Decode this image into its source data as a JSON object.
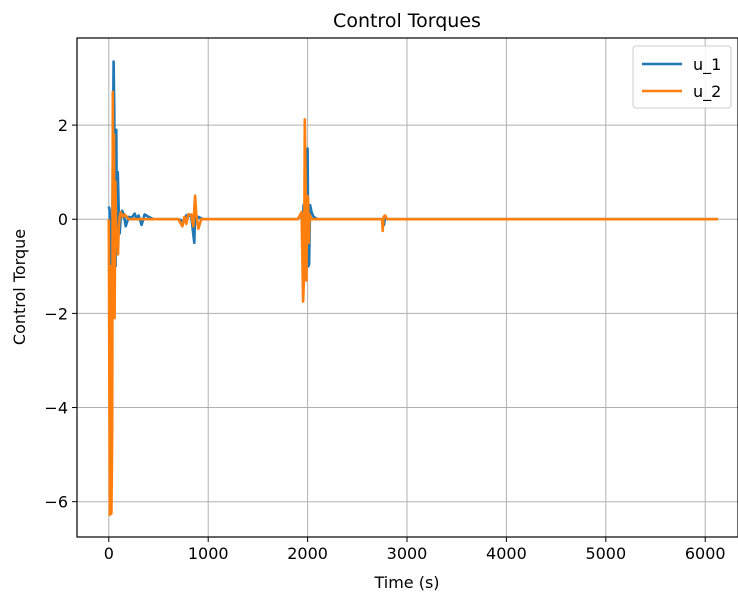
{
  "chart_data": {
    "type": "line",
    "title": "Control Torques",
    "xlabel": "Time (s)",
    "ylabel": "Control Torque",
    "xlim": [
      -320,
      6330
    ],
    "ylim": [
      -6.75,
      3.85
    ],
    "xticks": [
      0,
      1000,
      2000,
      3000,
      4000,
      5000,
      6000
    ],
    "xtick_labels": [
      "0",
      "1000",
      "2000",
      "3000",
      "4000",
      "5000",
      "6000"
    ],
    "yticks": [
      -6,
      -4,
      -2,
      0,
      2
    ],
    "ytick_labels": [
      "−6",
      "−4",
      "−2",
      "0",
      "2"
    ],
    "grid": true,
    "legend_position": "top-right",
    "series": [
      {
        "name": "u_1",
        "color": "#1f77b4",
        "points": [
          [
            0,
            0.27
          ],
          [
            8,
            0.2
          ],
          [
            15,
            -0.5
          ],
          [
            22,
            -6.25
          ],
          [
            30,
            -1.5
          ],
          [
            40,
            1.2
          ],
          [
            48,
            3.35
          ],
          [
            55,
            2.3
          ],
          [
            60,
            0.1
          ],
          [
            68,
            -1.0
          ],
          [
            75,
            1.9
          ],
          [
            82,
            -0.6
          ],
          [
            90,
            1.0
          ],
          [
            100,
            0.2
          ],
          [
            110,
            -0.3
          ],
          [
            120,
            0.05
          ],
          [
            135,
            0.18
          ],
          [
            150,
            0.1
          ],
          [
            170,
            -0.15
          ],
          [
            200,
            0.05
          ],
          [
            230,
            0.03
          ],
          [
            260,
            0.12
          ],
          [
            280,
            0.0
          ],
          [
            300,
            0.08
          ],
          [
            330,
            -0.12
          ],
          [
            360,
            0.1
          ],
          [
            400,
            0.05
          ],
          [
            450,
            0.0
          ],
          [
            700,
            0.0
          ],
          [
            750,
            -0.05
          ],
          [
            780,
            0.08
          ],
          [
            800,
            0.1
          ],
          [
            830,
            0.05
          ],
          [
            860,
            -0.5
          ],
          [
            870,
            0.3
          ],
          [
            880,
            -0.05
          ],
          [
            900,
            0.05
          ],
          [
            950,
            0.0
          ],
          [
            1900,
            0.0
          ],
          [
            1940,
            0.1
          ],
          [
            1950,
            -0.1
          ],
          [
            1960,
            0.3
          ],
          [
            1970,
            -1.3
          ],
          [
            1978,
            -1.0
          ],
          [
            1985,
            1.1
          ],
          [
            1992,
            -0.8
          ],
          [
            2000,
            1.5
          ],
          [
            2008,
            -1.0
          ],
          [
            2015,
            -0.95
          ],
          [
            2025,
            0.3
          ],
          [
            2040,
            0.15
          ],
          [
            2060,
            0.05
          ],
          [
            2100,
            0.0
          ],
          [
            2750,
            0.0
          ],
          [
            2770,
            -0.12
          ],
          [
            2780,
            0.05
          ],
          [
            2800,
            0.0
          ],
          [
            6130,
            0.0
          ]
        ]
      },
      {
        "name": "u_2",
        "color": "#ff7f0e",
        "points": [
          [
            0,
            0.0
          ],
          [
            5,
            -3.0
          ],
          [
            10,
            -6.28
          ],
          [
            18,
            -1.0
          ],
          [
            26,
            -6.25
          ],
          [
            34,
            -4.5
          ],
          [
            40,
            2.7
          ],
          [
            46,
            -1.5
          ],
          [
            52,
            1.8
          ],
          [
            58,
            -2.1
          ],
          [
            66,
            0.8
          ],
          [
            74,
            -0.4
          ],
          [
            82,
            -0.2
          ],
          [
            92,
            -0.75
          ],
          [
            100,
            -0.2
          ],
          [
            110,
            0.05
          ],
          [
            120,
            0.15
          ],
          [
            140,
            0.05
          ],
          [
            160,
            0.1
          ],
          [
            200,
            0.0
          ],
          [
            300,
            0.0
          ],
          [
            700,
            0.0
          ],
          [
            740,
            -0.15
          ],
          [
            760,
            0.05
          ],
          [
            780,
            -0.1
          ],
          [
            800,
            0.1
          ],
          [
            830,
            0.1
          ],
          [
            850,
            -0.15
          ],
          [
            868,
            0.5
          ],
          [
            880,
            0.1
          ],
          [
            900,
            -0.2
          ],
          [
            930,
            0.0
          ],
          [
            1900,
            0.0
          ],
          [
            1940,
            0.15
          ],
          [
            1955,
            -1.75
          ],
          [
            1965,
            -1.2
          ],
          [
            1972,
            2.12
          ],
          [
            1980,
            0.8
          ],
          [
            1988,
            -1.3
          ],
          [
            1996,
            0.5
          ],
          [
            2004,
            0.45
          ],
          [
            2012,
            -0.5
          ],
          [
            2020,
            0.1
          ],
          [
            2040,
            0.0
          ],
          [
            2750,
            0.0
          ],
          [
            2755,
            -0.25
          ],
          [
            2765,
            0.05
          ],
          [
            2780,
            0.08
          ],
          [
            2800,
            0.0
          ],
          [
            6130,
            0.0
          ]
        ]
      }
    ]
  }
}
